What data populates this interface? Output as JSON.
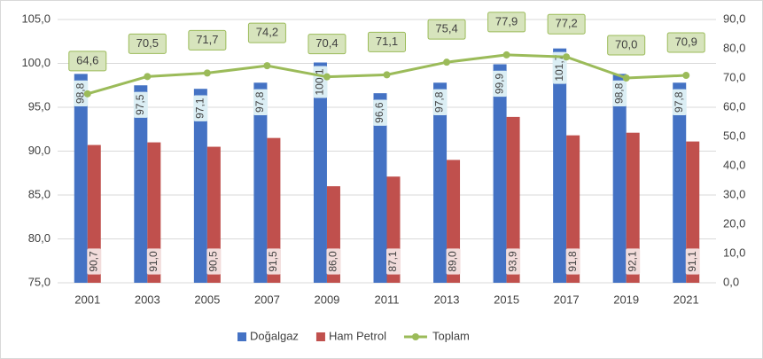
{
  "chart_data": {
    "type": "bar",
    "categories": [
      "2001",
      "2003",
      "2005",
      "2007",
      "2009",
      "2011",
      "2013",
      "2015",
      "2017",
      "2019",
      "2021"
    ],
    "series": [
      {
        "name": "Doğalgaz",
        "color": "#4472c4",
        "values": [
          98.8,
          97.5,
          97.1,
          97.8,
          100.1,
          96.6,
          97.8,
          99.9,
          101.7,
          98.8,
          97.8
        ],
        "value_labels": [
          "98,8",
          "97,5",
          "97,1",
          "97,8",
          "100,1",
          "96,6",
          "97,8",
          "99,9",
          "101,7",
          "98,8",
          "97,8"
        ]
      },
      {
        "name": "Ham Petrol",
        "color": "#c0504d",
        "values": [
          90.7,
          91.0,
          90.5,
          91.5,
          86.0,
          87.1,
          89.0,
          93.9,
          91.8,
          92.1,
          91.1
        ],
        "value_labels": [
          "90,7",
          "91,0",
          "90,5",
          "91,5",
          "86,0",
          "87,1",
          "89,0",
          "93,9",
          "91,8",
          "92,1",
          "91,1"
        ]
      },
      {
        "name": "Toplam",
        "color": "#9bbb59",
        "type": "line",
        "axis": "y2",
        "values": [
          64.6,
          70.5,
          71.7,
          74.2,
          70.4,
          71.1,
          75.4,
          77.9,
          77.2,
          70.0,
          70.9
        ],
        "value_labels": [
          "64,6",
          "70,5",
          "71,7",
          "74,2",
          "70,4",
          "71,1",
          "75,4",
          "77,9",
          "77,2",
          "70,0",
          "70,9"
        ]
      }
    ],
    "ylim": [
      75,
      105
    ],
    "yticks": [
      {
        "value": 75,
        "label": "75,0"
      },
      {
        "value": 80,
        "label": "80,0"
      },
      {
        "value": 85,
        "label": "85,0"
      },
      {
        "value": 90,
        "label": "90,0"
      },
      {
        "value": 95,
        "label": "95,0"
      },
      {
        "value": 100,
        "label": "100,0"
      },
      {
        "value": 105,
        "label": "105,0"
      }
    ],
    "y2lim": [
      0,
      90
    ],
    "y2ticks": [
      {
        "value": 0,
        "label": "0,0"
      },
      {
        "value": 10,
        "label": "10,0"
      },
      {
        "value": 20,
        "label": "20,0"
      },
      {
        "value": 30,
        "label": "30,0"
      },
      {
        "value": 40,
        "label": "40,0"
      },
      {
        "value": 50,
        "label": "50,0"
      },
      {
        "value": 60,
        "label": "60,0"
      },
      {
        "value": 70,
        "label": "70,0"
      },
      {
        "value": 80,
        "label": "80,0"
      },
      {
        "value": 90,
        "label": "90,0"
      }
    ],
    "grid": true,
    "legend": "bottom"
  }
}
